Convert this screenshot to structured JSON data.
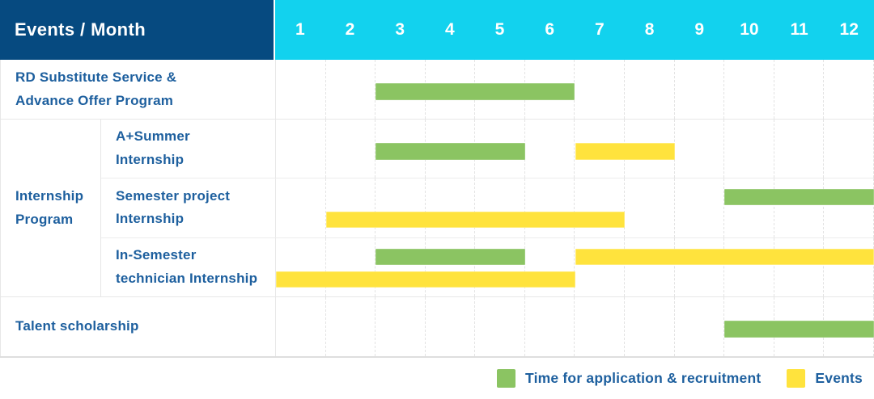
{
  "header": {
    "title": "Events / Month"
  },
  "colors": {
    "header_bg": "#064a80",
    "month_header_bg": "#12d2ee",
    "label_text": "#1d5f9e",
    "application_bar": "#8bc462",
    "application_bar_border": "#9fce7e",
    "events_bar": "#ffe33d",
    "events_bar_border": "#ffeb74"
  },
  "chart_data": {
    "type": "gantt",
    "title": "Events / Month",
    "x": {
      "label": "Month",
      "range": [
        1,
        12
      ],
      "ticks": [
        "1",
        "2",
        "3",
        "4",
        "5",
        "6",
        "7",
        "8",
        "9",
        "10",
        "11",
        "12"
      ]
    },
    "legend": [
      {
        "key": "application",
        "label": "Time for application & recruitment",
        "color": "#8bc462"
      },
      {
        "key": "events",
        "label": "Events",
        "color": "#ffe33d"
      }
    ],
    "legend_position": "bottom-right",
    "sections": [
      {
        "group_label": null,
        "rows": [
          {
            "id": "rd-substitute-service",
            "label": "RD Substitute Service & Advance Offer Program",
            "label_lines": [
              "RD Substitute Service &",
              "Advance Offer Program"
            ],
            "bar_lines": [
              [
                {
                  "series": "application",
                  "start_month": 3,
                  "end_month": 6
                }
              ]
            ]
          }
        ]
      },
      {
        "group_label": "Internship Program",
        "group_label_lines": [
          "Internship",
          "Program"
        ],
        "rows": [
          {
            "id": "a-plus-summer-internship",
            "label": "A+Summer Internship",
            "label_lines": [
              "A+Summer",
              "Internship"
            ],
            "bar_lines": [
              [
                {
                  "series": "application",
                  "start_month": 3,
                  "end_month": 5
                },
                {
                  "series": "events",
                  "start_month": 7,
                  "end_month": 8
                }
              ]
            ]
          },
          {
            "id": "semester-project-internship",
            "label": "Semester project Internship",
            "label_lines": [
              "Semester project",
              "Internship"
            ],
            "bar_lines": [
              [
                {
                  "series": "application",
                  "start_month": 10,
                  "end_month": 12
                }
              ],
              [
                {
                  "series": "events",
                  "start_month": 2,
                  "end_month": 7
                }
              ]
            ]
          },
          {
            "id": "in-semester-technician-internship",
            "label": "In-Semester technician Internship",
            "label_lines": [
              "In-Semester",
              "technician Internship"
            ],
            "bar_lines": [
              [
                {
                  "series": "application",
                  "start_month": 3,
                  "end_month": 5
                },
                {
                  "series": "events",
                  "start_month": 7,
                  "end_month": 12
                }
              ],
              [
                {
                  "series": "events",
                  "start_month": 1,
                  "end_month": 6
                }
              ]
            ]
          }
        ]
      },
      {
        "group_label": null,
        "rows": [
          {
            "id": "talent-scholarship",
            "label": "Talent scholarship",
            "label_lines": [
              "Talent scholarship"
            ],
            "bar_lines": [
              [
                {
                  "series": "application",
                  "start_month": 10,
                  "end_month": 12
                }
              ]
            ]
          }
        ]
      }
    ]
  }
}
